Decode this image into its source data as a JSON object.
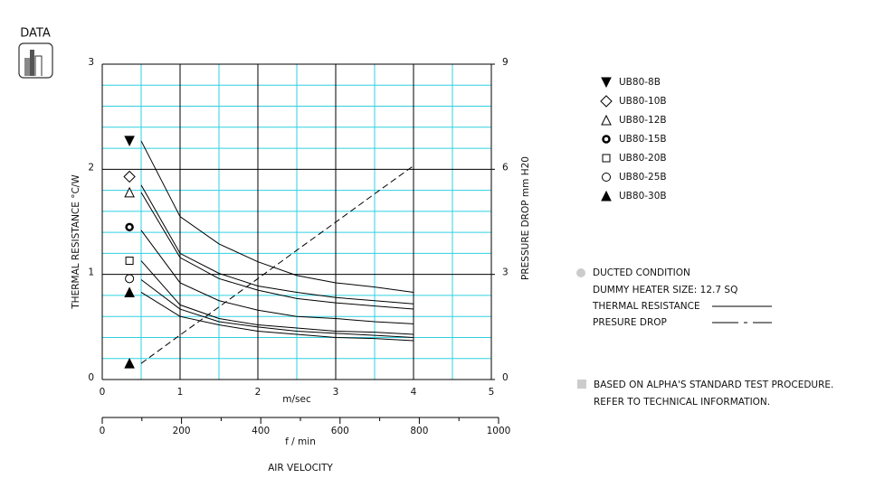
{
  "icon_label": "DATA",
  "chart_data": {
    "type": "line",
    "y_label": "THERMAL RESISTANCE   °C/W",
    "y2_label": "PRESSURE DROP   mm H20",
    "x_label": "m/sec",
    "x2_label": "f / min",
    "axis_title": "AIR VELOCITY",
    "x": [
      0.5,
      1,
      1.5,
      2,
      2.5,
      3,
      3.5,
      4
    ],
    "xlim": [
      0,
      5
    ],
    "xticks": [
      0,
      1,
      2,
      3,
      4,
      5
    ],
    "x2lim": [
      0,
      1000
    ],
    "x2ticks": [
      0,
      200,
      400,
      600,
      800,
      1000
    ],
    "ylim": [
      0,
      3
    ],
    "yticks": [
      0,
      1,
      2,
      3
    ],
    "y2lim": [
      0,
      9
    ],
    "y2ticks": [
      0,
      3,
      6,
      9
    ],
    "grid": true,
    "marker_x": 0.35,
    "series": [
      {
        "name": "UB80-8B",
        "marker": "triangle-down-filled",
        "marker_value": 2.27,
        "values": [
          2.27,
          1.55,
          1.29,
          1.12,
          0.99,
          0.92,
          0.88,
          0.83
        ]
      },
      {
        "name": "UB80-10B",
        "marker": "diamond",
        "marker_value": 1.93,
        "values": [
          1.85,
          1.2,
          1.01,
          0.89,
          0.83,
          0.78,
          0.75,
          0.72
        ]
      },
      {
        "name": "UB80-12B",
        "marker": "triangle",
        "marker_value": 1.78,
        "values": [
          1.78,
          1.16,
          0.96,
          0.85,
          0.77,
          0.73,
          0.7,
          0.67
        ]
      },
      {
        "name": "UB80-15B",
        "marker": "circle-bold",
        "marker_value": 1.45,
        "values": [
          1.42,
          0.92,
          0.75,
          0.66,
          0.6,
          0.58,
          0.55,
          0.53
        ]
      },
      {
        "name": "UB80-20B",
        "marker": "square",
        "marker_value": 1.13,
        "values": [
          1.13,
          0.71,
          0.58,
          0.52,
          0.49,
          0.46,
          0.45,
          0.43
        ]
      },
      {
        "name": "UB80-25B",
        "marker": "circle",
        "marker_value": 0.96,
        "values": [
          0.95,
          0.67,
          0.55,
          0.5,
          0.46,
          0.44,
          0.42,
          0.4
        ]
      },
      {
        "name": "UB80-30B",
        "marker": "triangle-filled",
        "marker_value": 0.83,
        "values": [
          0.83,
          0.6,
          0.52,
          0.46,
          0.43,
          0.4,
          0.39,
          0.37
        ]
      },
      {
        "name": "PRESURE DROP",
        "axis": "y2",
        "dashed": true,
        "marker": "triangle-filled",
        "marker_value": 0.46,
        "values": [
          0.46,
          1.27,
          2.07,
          2.88,
          3.69,
          4.49,
          5.3,
          6.1
        ]
      }
    ],
    "notes": {
      "condition": "DUCTED CONDITION",
      "heater": "DUMMY HEATER SIZE: 12.7 SQ",
      "thermal": "THERMAL RESISTANCE",
      "footnote_1": "BASED ON ALPHA'S STANDARD TEST PROCEDURE.",
      "footnote_2": "REFER TO TECHNICAL INFORMATION."
    }
  }
}
